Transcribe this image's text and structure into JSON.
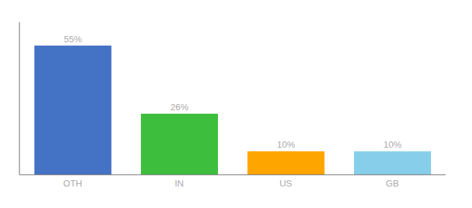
{
  "chart_data": {
    "type": "bar",
    "categories": [
      "OTH",
      "IN",
      "US",
      "GB"
    ],
    "values": [
      55,
      26,
      10,
      10
    ],
    "value_labels": [
      "55%",
      "26%",
      "10%",
      "10%"
    ],
    "colors": [
      "#4472C4",
      "#3DBF3D",
      "#FFA500",
      "#87CEEB"
    ],
    "ylim": [
      0,
      65
    ],
    "grid": false,
    "data_labels": true,
    "tick_labels": "x"
  }
}
